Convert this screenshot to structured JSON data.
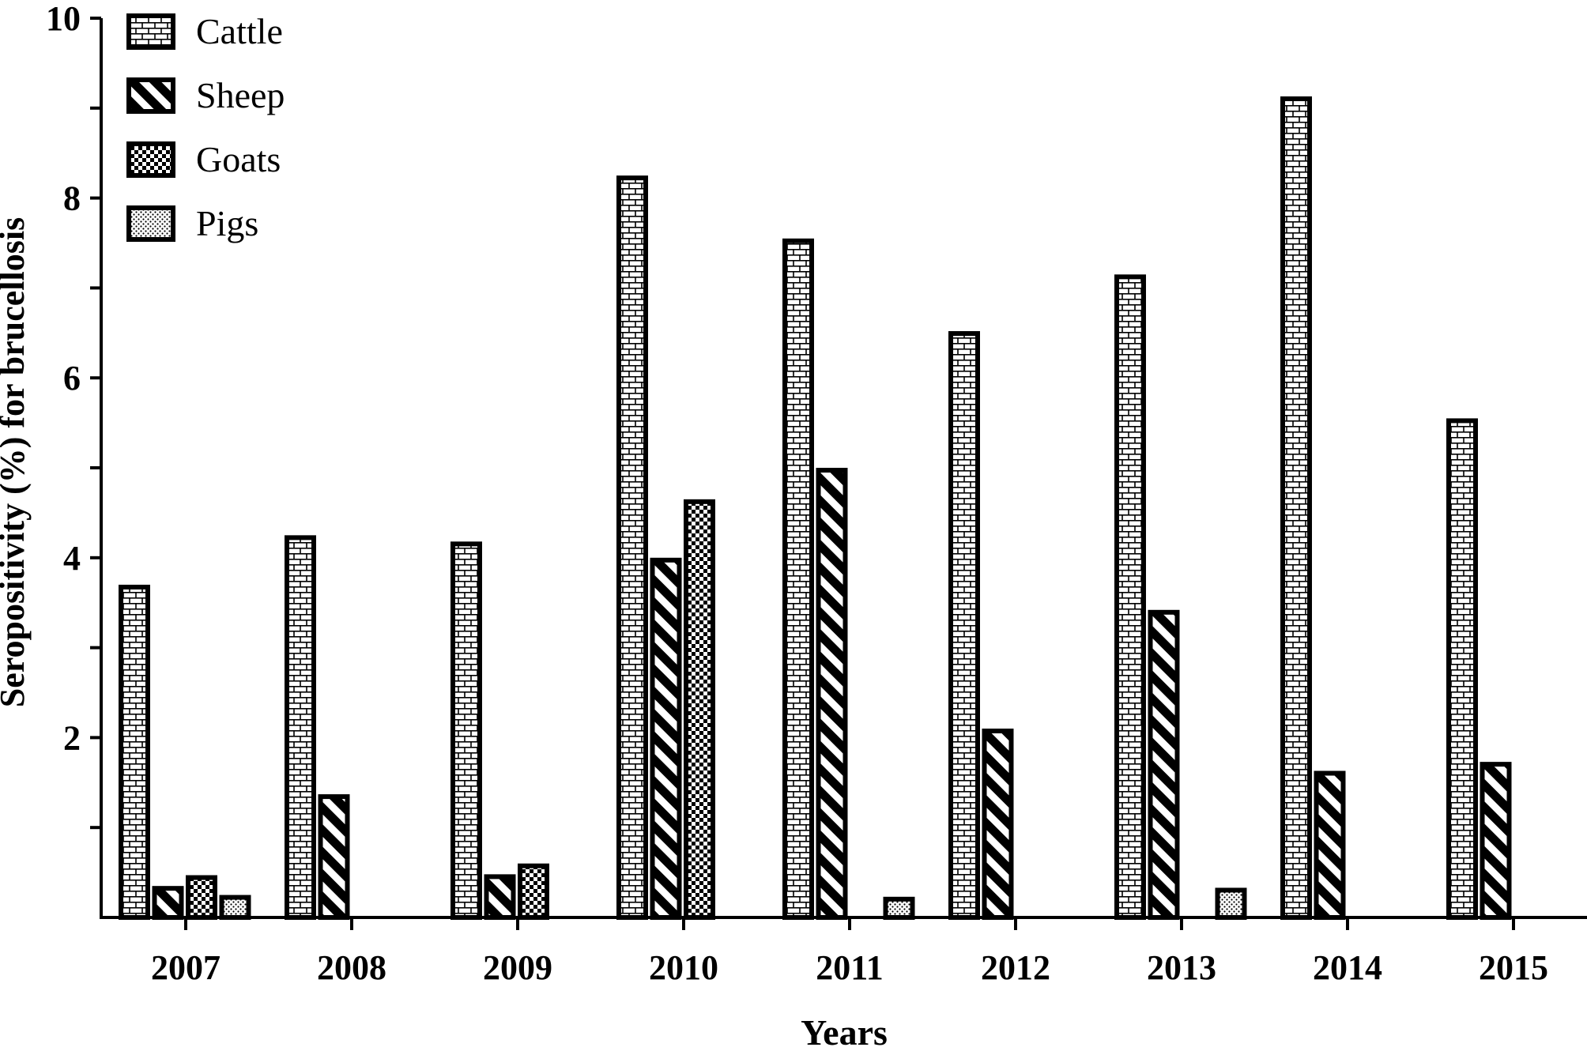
{
  "chart_data": {
    "type": "bar",
    "xlabel": "Years",
    "ylabel": "Seropositivity (%) for brucellosis",
    "ylim": [
      0,
      10
    ],
    "yticks": [
      2,
      4,
      6,
      8,
      10
    ],
    "ytick_labels": [
      "2",
      "4",
      "6",
      "8",
      "10"
    ],
    "categories": [
      "2007",
      "2008",
      "2009",
      "2010",
      "2011",
      "2012",
      "2013",
      "2014",
      "2015"
    ],
    "series": [
      {
        "name": "Cattle",
        "pattern": "bricks",
        "values": [
          3.7,
          4.25,
          4.18,
          8.25,
          7.55,
          6.52,
          7.15,
          9.13,
          5.55
        ]
      },
      {
        "name": "Sheep",
        "pattern": "diagonal",
        "values": [
          0.35,
          1.37,
          0.48,
          4.0,
          5.0,
          2.1,
          3.42,
          1.63,
          1.73
        ]
      },
      {
        "name": "Goats",
        "pattern": "checker",
        "values": [
          0.47,
          0,
          0.6,
          4.65,
          0,
          0,
          0,
          0,
          0
        ]
      },
      {
        "name": "Pigs",
        "pattern": "dots",
        "values": [
          0.25,
          0,
          0,
          0,
          0.23,
          0,
          0.33,
          0,
          0
        ]
      }
    ],
    "legend_position": "top-left",
    "grid": false,
    "colors": {
      "ink": "#000000",
      "background": "#ffffff"
    }
  }
}
